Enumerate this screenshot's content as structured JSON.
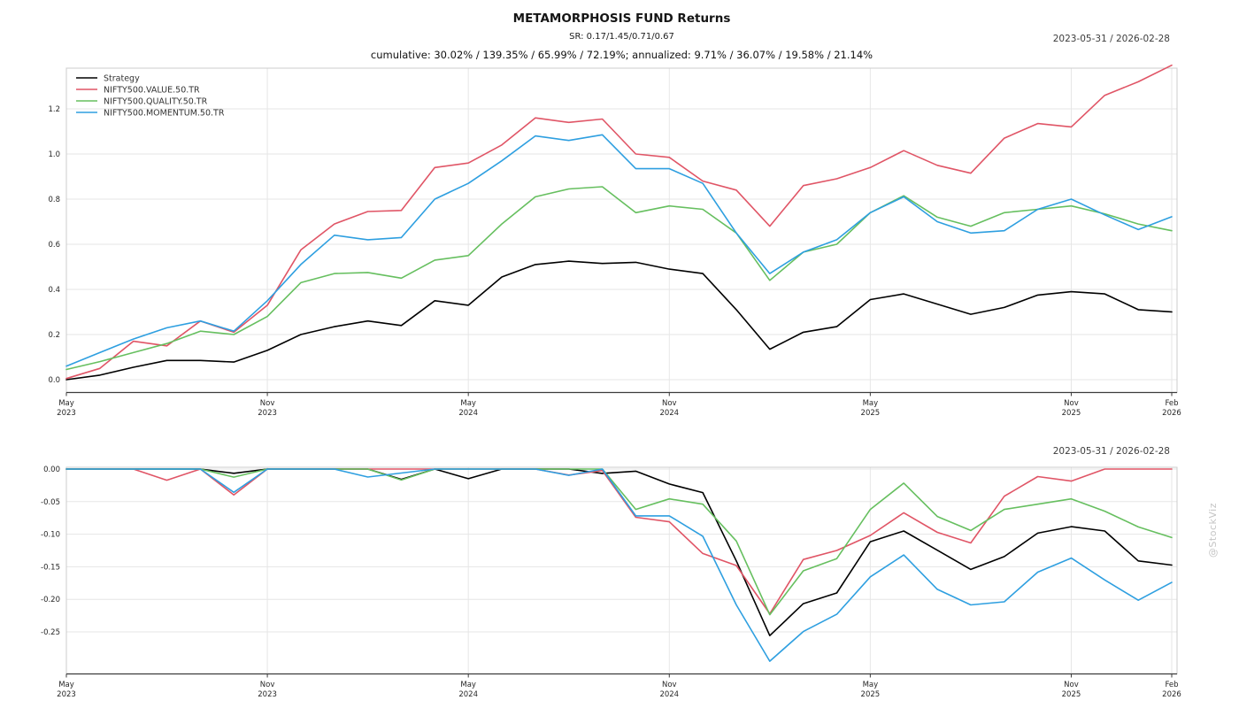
{
  "header": {
    "title": "METAMORPHOSIS FUND Returns",
    "subtitle": "SR: 0.17/1.45/0.71/0.67",
    "stats_line": "cumulative: 30.02% / 139.35% / 65.99% / 72.19%; annualized: 9.71% / 36.07% / 19.58% / 21.14%"
  },
  "watermark": "@StockViz",
  "colors": {
    "strategy": "#000000",
    "value": "#e05566",
    "quality": "#66bf5f",
    "momentum": "#2e9fe0",
    "grid": "#e6e6e6",
    "spine": "#cccccc",
    "axis": "#3c3c3c",
    "tick_label": "#262626"
  },
  "chart_data": [
    {
      "type": "line",
      "name": "cumulative-returns",
      "date_range": "2023-05-31 / 2026-02-28",
      "legend_position": "top-left",
      "grid": true,
      "ylim": [
        -0.02,
        1.39
      ],
      "y_ticks": [
        0.0,
        0.2,
        0.4,
        0.6,
        0.8,
        1.0,
        1.2
      ],
      "y_tick_labels": [
        "0.0",
        "0.2",
        "0.4",
        "0.6",
        "0.8",
        "1.0",
        "1.2"
      ],
      "x_ticks": [
        {
          "index": 0,
          "month": "May",
          "year": "2023"
        },
        {
          "index": 6,
          "month": "Nov",
          "year": "2023"
        },
        {
          "index": 12,
          "month": "May",
          "year": "2024"
        },
        {
          "index": 18,
          "month": "Nov",
          "year": "2024"
        },
        {
          "index": 24,
          "month": "May",
          "year": "2025"
        },
        {
          "index": 30,
          "month": "Nov",
          "year": "2025"
        },
        {
          "index": 33,
          "month": "Feb",
          "year": "2026"
        }
      ],
      "x_months": [
        "2023-05",
        "2023-06",
        "2023-07",
        "2023-08",
        "2023-09",
        "2023-10",
        "2023-11",
        "2023-12",
        "2024-01",
        "2024-02",
        "2024-03",
        "2024-04",
        "2024-05",
        "2024-06",
        "2024-07",
        "2024-08",
        "2024-09",
        "2024-10",
        "2024-11",
        "2024-12",
        "2025-01",
        "2025-02",
        "2025-03",
        "2025-04",
        "2025-05",
        "2025-06",
        "2025-07",
        "2025-08",
        "2025-09",
        "2025-10",
        "2025-11",
        "2025-12",
        "2026-01",
        "2026-02"
      ],
      "series": [
        {
          "name": "Strategy",
          "color": "#000000",
          "values": [
            0,
            0.02,
            0.055,
            0.085,
            0.085,
            0.078,
            0.13,
            0.2,
            0.235,
            0.26,
            0.24,
            0.35,
            0.33,
            0.455,
            0.51,
            0.525,
            0.515,
            0.52,
            0.49,
            0.47,
            0.31,
            0.135,
            0.21,
            0.235,
            0.355,
            0.38,
            0.335,
            0.29,
            0.32,
            0.375,
            0.39,
            0.38,
            0.31,
            0.3002
          ]
        },
        {
          "name": "NIFTY500.VALUE.50.TR",
          "color": "#e05566",
          "values": [
            0.005,
            0.05,
            0.17,
            0.15,
            0.26,
            0.21,
            0.33,
            0.575,
            0.69,
            0.745,
            0.75,
            0.94,
            0.96,
            1.04,
            1.16,
            1.14,
            1.155,
            1.0,
            0.985,
            0.88,
            0.84,
            0.68,
            0.86,
            0.89,
            0.94,
            1.015,
            0.95,
            0.915,
            1.07,
            1.135,
            1.12,
            1.26,
            1.32,
            1.3935
          ]
        },
        {
          "name": "NIFTY500.QUALITY.50.TR",
          "color": "#66bf5f",
          "values": [
            0.045,
            0.08,
            0.12,
            0.16,
            0.215,
            0.2,
            0.28,
            0.43,
            0.47,
            0.475,
            0.45,
            0.53,
            0.55,
            0.69,
            0.81,
            0.845,
            0.855,
            0.74,
            0.77,
            0.755,
            0.65,
            0.44,
            0.565,
            0.6,
            0.74,
            0.815,
            0.72,
            0.68,
            0.74,
            0.755,
            0.77,
            0.735,
            0.69,
            0.6599
          ]
        },
        {
          "name": "NIFTY500.MOMENTUM.50.TR",
          "color": "#2e9fe0",
          "values": [
            0.06,
            0.12,
            0.18,
            0.23,
            0.26,
            0.215,
            0.35,
            0.51,
            0.64,
            0.62,
            0.63,
            0.8,
            0.87,
            0.97,
            1.08,
            1.06,
            1.085,
            0.935,
            0.935,
            0.87,
            0.65,
            0.47,
            0.565,
            0.62,
            0.74,
            0.81,
            0.7,
            0.65,
            0.66,
            0.755,
            0.8,
            0.73,
            0.665,
            0.7219
          ]
        }
      ]
    },
    {
      "type": "line",
      "name": "drawdowns",
      "date_range": "2023-05-31 / 2026-02-28",
      "legend_position": "none",
      "grid": true,
      "ylim": [
        -0.315,
        0.003
      ],
      "y_ticks": [
        0.0,
        -0.05,
        -0.1,
        -0.15,
        -0.2,
        -0.25
      ],
      "y_tick_labels": [
        "0.00",
        "-0.05",
        "-0.10",
        "-0.15",
        "-0.20",
        "-0.25"
      ],
      "x_ticks": [
        {
          "index": 0,
          "month": "May",
          "year": "2023"
        },
        {
          "index": 6,
          "month": "Nov",
          "year": "2023"
        },
        {
          "index": 12,
          "month": "May",
          "year": "2024"
        },
        {
          "index": 18,
          "month": "Nov",
          "year": "2024"
        },
        {
          "index": 24,
          "month": "May",
          "year": "2025"
        },
        {
          "index": 30,
          "month": "Nov",
          "year": "2025"
        },
        {
          "index": 33,
          "month": "Feb",
          "year": "2026"
        }
      ],
      "x_months": [
        "2023-05",
        "2023-06",
        "2023-07",
        "2023-08",
        "2023-09",
        "2023-10",
        "2023-11",
        "2023-12",
        "2024-01",
        "2024-02",
        "2024-03",
        "2024-04",
        "2024-05",
        "2024-06",
        "2024-07",
        "2024-08",
        "2024-09",
        "2024-10",
        "2024-11",
        "2024-12",
        "2025-01",
        "2025-02",
        "2025-03",
        "2025-04",
        "2025-05",
        "2025-06",
        "2025-07",
        "2025-08",
        "2025-09",
        "2025-10",
        "2025-11",
        "2025-12",
        "2026-01",
        "2026-02"
      ],
      "series": [
        {
          "name": "Strategy",
          "color": "#000000",
          "values": [
            0,
            0,
            0,
            0,
            0,
            -0.0065,
            0,
            0,
            0,
            0,
            -0.0159,
            0,
            -0.0148,
            0,
            0,
            0,
            -0.0066,
            -0.0033,
            -0.023,
            -0.0361,
            -0.141,
            -0.2557,
            -0.2066,
            -0.1902,
            -0.1115,
            -0.0951,
            -0.1246,
            -0.1541,
            -0.1344,
            -0.0984,
            -0.0885,
            -0.0951,
            -0.141,
            -0.1474
          ]
        },
        {
          "name": "NIFTY500.VALUE.50.TR",
          "color": "#e05566",
          "values": [
            0,
            0,
            0,
            -0.0171,
            0,
            -0.0397,
            0,
            0,
            0,
            0,
            0,
            0,
            0,
            0,
            0,
            -0.0093,
            -0.0023,
            -0.0741,
            -0.081,
            -0.1296,
            -0.1481,
            -0.2222,
            -0.1389,
            -0.125,
            -0.1019,
            -0.0671,
            -0.0972,
            -0.1134,
            -0.0417,
            -0.0116,
            -0.0185,
            0,
            0,
            0
          ]
        },
        {
          "name": "NIFTY500.QUALITY.50.TR",
          "color": "#66bf5f",
          "values": [
            0,
            0,
            0,
            0,
            0,
            -0.0123,
            0,
            0,
            0,
            0,
            -0.0169,
            0,
            0,
            0,
            0,
            0,
            0,
            -0.062,
            -0.0458,
            -0.0539,
            -0.1105,
            -0.2237,
            -0.1563,
            -0.1375,
            -0.062,
            -0.0216,
            -0.0728,
            -0.0943,
            -0.062,
            -0.0539,
            -0.0458,
            -0.0647,
            -0.0889,
            -0.1052
          ]
        },
        {
          "name": "NIFTY500.MOMENTUM.50.TR",
          "color": "#2e9fe0",
          "values": [
            0,
            0,
            0,
            0,
            0,
            -0.0357,
            0,
            0,
            0,
            -0.0122,
            -0.0061,
            0,
            0,
            0,
            0,
            -0.0096,
            0,
            -0.0719,
            -0.0719,
            -0.1031,
            -0.2086,
            -0.295,
            -0.2494,
            -0.223,
            -0.1655,
            -0.1319,
            -0.1847,
            -0.2086,
            -0.2038,
            -0.1583,
            -0.1367,
            -0.1703,
            -0.2014,
            -0.1741
          ]
        }
      ]
    }
  ]
}
